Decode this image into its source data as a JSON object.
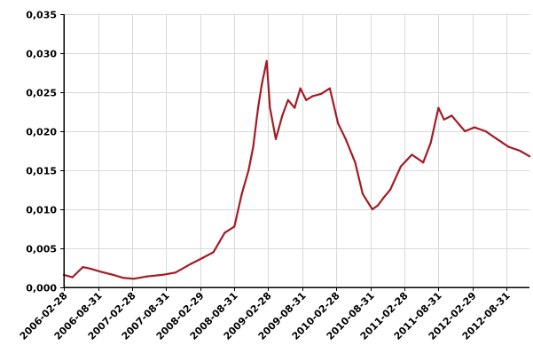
{
  "chart_data": {
    "type": "line",
    "title": "",
    "xlabel": "",
    "ylabel": "",
    "grid": true,
    "legend": "none",
    "colors": {
      "line": "#a31c24",
      "grid": "#d9d9d9",
      "axis": "#000000"
    },
    "x_range": [
      "2006-02-28",
      "2012-12-31"
    ],
    "ylim": [
      0,
      0.035
    ],
    "y_ticks": [
      {
        "value": 0.0,
        "label": "0,000"
      },
      {
        "value": 0.005,
        "label": "0,005"
      },
      {
        "value": 0.01,
        "label": "0,010"
      },
      {
        "value": 0.015,
        "label": "0,015"
      },
      {
        "value": 0.02,
        "label": "0,020"
      },
      {
        "value": 0.025,
        "label": "0,025"
      },
      {
        "value": 0.03,
        "label": "0,030"
      },
      {
        "value": 0.035,
        "label": "0,035"
      }
    ],
    "x_ticks": [
      "2006-02-28",
      "2006-08-31",
      "2007-02-28",
      "2007-08-31",
      "2008-02-29",
      "2008-08-31",
      "2009-02-28",
      "2009-08-31",
      "2010-02-28",
      "2010-08-31",
      "2011-02-28",
      "2011-08-31",
      "2012-02-29",
      "2012-08-31"
    ],
    "series": [
      {
        "x": [
          "2006-02-28",
          "2006-04-15",
          "2006-06-10",
          "2006-07-20",
          "2006-09-15",
          "2006-11-20",
          "2007-01-15",
          "2007-03-10",
          "2007-05-20",
          "2007-08-10",
          "2007-10-20",
          "2008-01-10",
          "2008-03-15",
          "2008-05-10",
          "2008-07-10",
          "2008-08-31",
          "2008-10-10",
          "2008-11-15",
          "2008-12-10",
          "2009-01-05",
          "2009-01-25",
          "2009-02-20",
          "2009-03-10",
          "2009-04-10",
          "2009-05-15",
          "2009-06-15",
          "2009-07-20",
          "2009-08-20",
          "2009-09-20",
          "2009-10-25",
          "2009-12-10",
          "2010-01-25",
          "2010-03-10",
          "2010-04-20",
          "2010-06-10",
          "2010-07-20",
          "2010-09-10",
          "2010-10-10",
          "2010-11-10",
          "2010-12-15",
          "2011-02-10",
          "2011-04-10",
          "2011-06-10",
          "2011-07-20",
          "2011-08-31",
          "2011-09-30",
          "2011-11-10",
          "2011-12-15",
          "2012-01-20",
          "2012-03-10",
          "2012-05-10",
          "2012-07-10",
          "2012-09-10",
          "2012-11-10",
          "2012-12-31"
        ],
        "values": [
          0.0016,
          0.0013,
          0.0026,
          0.0024,
          0.002,
          0.0016,
          0.0012,
          0.0011,
          0.0014,
          0.0016,
          0.0019,
          0.003,
          0.0038,
          0.0045,
          0.007,
          0.0078,
          0.012,
          0.015,
          0.018,
          0.023,
          0.026,
          0.029,
          0.023,
          0.019,
          0.022,
          0.024,
          0.023,
          0.0255,
          0.024,
          0.0245,
          0.0248,
          0.0255,
          0.021,
          0.019,
          0.016,
          0.012,
          0.01,
          0.0105,
          0.0115,
          0.0125,
          0.0155,
          0.017,
          0.016,
          0.0185,
          0.023,
          0.0215,
          0.022,
          0.021,
          0.02,
          0.0205,
          0.02,
          0.019,
          0.018,
          0.0175,
          0.0168
        ]
      }
    ]
  }
}
